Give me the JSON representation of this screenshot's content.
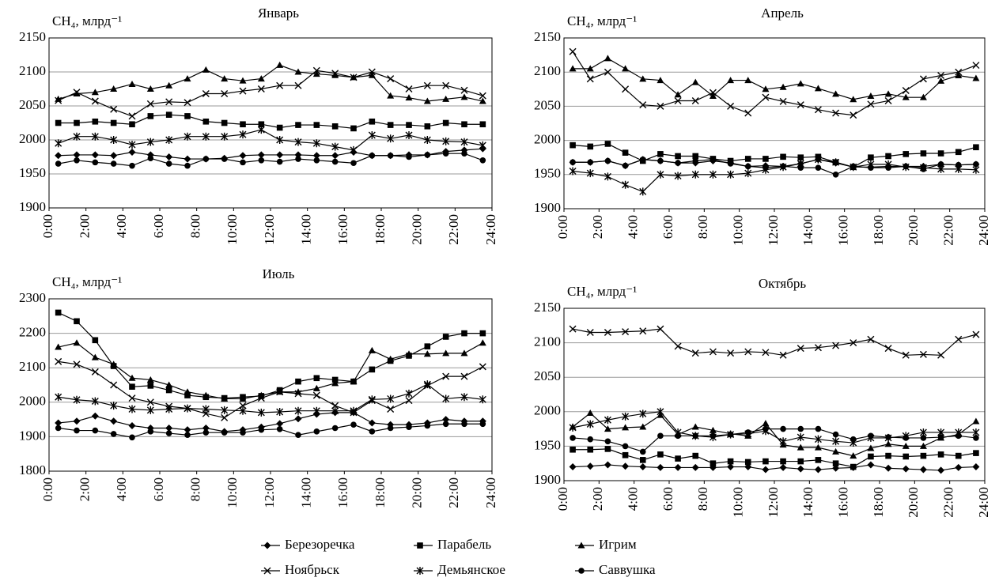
{
  "chart_data": [
    {
      "type": "line",
      "title": "Январь",
      "y_label": "CH₄, млрд⁻¹",
      "color": "#000000",
      "grid": true,
      "x": [
        0.5,
        1.5,
        2.5,
        3.5,
        4.5,
        5.5,
        6.5,
        7.5,
        8.5,
        9.5,
        10.5,
        11.5,
        12.5,
        13.5,
        14.5,
        15.5,
        16.5,
        17.5,
        18.5,
        19.5,
        20.5,
        21.5,
        22.5,
        23.5
      ],
      "xlim": [
        0,
        24
      ],
      "xticks": [
        {
          "value": 0,
          "label": "0:00"
        },
        {
          "value": 2,
          "label": "2:00"
        },
        {
          "value": 4,
          "label": "4:00"
        },
        {
          "value": 6,
          "label": "6:00"
        },
        {
          "value": 8,
          "label": "8:00"
        },
        {
          "value": 10,
          "label": "10:00"
        },
        {
          "value": 12,
          "label": "12:00"
        },
        {
          "value": 14,
          "label": "14:00"
        },
        {
          "value": 16,
          "label": "16:00"
        },
        {
          "value": 18,
          "label": "18:00"
        },
        {
          "value": 20,
          "label": "20:00"
        },
        {
          "value": 22,
          "label": "22:00"
        },
        {
          "value": 24,
          "label": "24:00"
        }
      ],
      "ylim": [
        1900,
        2150
      ],
      "yticks": [
        1900,
        1950,
        2000,
        2050,
        2100,
        2150
      ],
      "series": [
        {
          "name": "Березоречка",
          "marker": "diamond",
          "values": [
            1977,
            1978,
            1978,
            1977,
            1982,
            1978,
            1975,
            1972,
            1972,
            1973,
            1977,
            1978,
            1978,
            1978,
            1977,
            1977,
            1982,
            1977,
            1977,
            1978,
            1978,
            1983,
            1985,
            1987
          ]
        },
        {
          "name": "Парабель",
          "marker": "square",
          "values": [
            2025,
            2025,
            2027,
            2025,
            2023,
            2035,
            2037,
            2035,
            2027,
            2025,
            2023,
            2023,
            2018,
            2022,
            2022,
            2020,
            2017,
            2027,
            2022,
            2022,
            2020,
            2025,
            2023,
            2023
          ]
        },
        {
          "name": "Игрим",
          "marker": "triangle",
          "values": [
            2060,
            2068,
            2070,
            2075,
            2082,
            2075,
            2080,
            2090,
            2103,
            2090,
            2087,
            2090,
            2110,
            2100,
            2097,
            2095,
            2092,
            2095,
            2065,
            2062,
            2057,
            2060,
            2063,
            2057
          ]
        },
        {
          "name": "Ноябрьск",
          "marker": "x",
          "values": [
            2058,
            2070,
            2057,
            2045,
            2035,
            2053,
            2056,
            2055,
            2068,
            2068,
            2072,
            2075,
            2080,
            2080,
            2102,
            2098,
            2092,
            2100,
            2090,
            2075,
            2080,
            2080,
            2073,
            2065
          ]
        },
        {
          "name": "Демьянское",
          "marker": "asterisk",
          "values": [
            1995,
            2005,
            2005,
            2000,
            1993,
            1997,
            2000,
            2005,
            2005,
            2005,
            2008,
            2015,
            2000,
            1997,
            1995,
            1990,
            1985,
            2007,
            2002,
            2007,
            2000,
            1998,
            1997,
            1992
          ]
        },
        {
          "name": "Саввушка",
          "marker": "circle",
          "values": [
            1965,
            1970,
            1967,
            1965,
            1962,
            1973,
            1965,
            1962,
            1972,
            1972,
            1967,
            1970,
            1968,
            1972,
            1970,
            1968,
            1966,
            1977,
            1977,
            1975,
            1978,
            1980,
            1980,
            1970
          ]
        }
      ]
    },
    {
      "type": "line",
      "title": "Апрель",
      "y_label": "CH₄, млрд⁻¹",
      "color": "#000000",
      "grid": true,
      "x": [
        0.5,
        1.5,
        2.5,
        3.5,
        4.5,
        5.5,
        6.5,
        7.5,
        8.5,
        9.5,
        10.5,
        11.5,
        12.5,
        13.5,
        14.5,
        15.5,
        16.5,
        17.5,
        18.5,
        19.5,
        20.5,
        21.5,
        22.5,
        23.5
      ],
      "xlim": [
        0,
        24
      ],
      "xticks": [
        {
          "value": 0,
          "label": "0:00"
        },
        {
          "value": 2,
          "label": "2:00"
        },
        {
          "value": 4,
          "label": "4:00"
        },
        {
          "value": 6,
          "label": "6:00"
        },
        {
          "value": 8,
          "label": "8:00"
        },
        {
          "value": 10,
          "label": "10:00"
        },
        {
          "value": 12,
          "label": "12:00"
        },
        {
          "value": 14,
          "label": "14:00"
        },
        {
          "value": 16,
          "label": "16:00"
        },
        {
          "value": 18,
          "label": "18:00"
        },
        {
          "value": 20,
          "label": "20:00"
        },
        {
          "value": 22,
          "label": "22:00"
        },
        {
          "value": 24,
          "label": "24:00"
        }
      ],
      "ylim": [
        1900,
        2150
      ],
      "yticks": [
        1900,
        1950,
        2000,
        2050,
        2100,
        2150
      ],
      "series": [
        {
          "values": [
            1968,
            1968,
            1970,
            1963,
            1972,
            1970,
            1967,
            1967,
            1970,
            1967,
            1962,
            1963,
            1962,
            1966,
            1972,
            1967,
            1961,
            1961,
            1962,
            1962,
            1962,
            1965,
            1964,
            1965
          ]
        },
        {
          "values": [
            1993,
            1991,
            1995,
            1982,
            1970,
            1980,
            1977,
            1977,
            1973,
            1970,
            1973,
            1973,
            1976,
            1975,
            1976,
            1968,
            1961,
            1975,
            1977,
            1980,
            1981,
            1981,
            1983,
            1990
          ]
        },
        {
          "values": [
            2105,
            2105,
            2120,
            2105,
            2090,
            2088,
            2067,
            2085,
            2065,
            2088,
            2088,
            2075,
            2078,
            2083,
            2076,
            2068,
            2060,
            2065,
            2068,
            2063,
            2063,
            2087,
            2095,
            2091
          ]
        },
        {
          "values": [
            2130,
            2090,
            2100,
            2075,
            2052,
            2050,
            2058,
            2058,
            2070,
            2050,
            2040,
            2063,
            2057,
            2052,
            2045,
            2040,
            2037,
            2053,
            2058,
            2073,
            2090,
            2095,
            2100,
            2110
          ]
        },
        {
          "values": [
            1955,
            1952,
            1947,
            1935,
            1925,
            1950,
            1948,
            1950,
            1950,
            1950,
            1952,
            1957,
            1961,
            1966,
            1972,
            1968,
            1961,
            1965,
            1965,
            1961,
            1960,
            1958,
            1958,
            1957
          ]
        },
        {
          "values": [
            1968,
            1968,
            1970,
            1963,
            1972,
            1970,
            1967,
            1970,
            1972,
            1966,
            1962,
            1960,
            1962,
            1960,
            1960,
            1950,
            1962,
            1960,
            1960,
            1962,
            1958,
            1965,
            1964,
            1965
          ]
        }
      ]
    },
    {
      "type": "line",
      "title": "Июль",
      "y_label": "CH₄, млрд⁻¹",
      "color": "#000000",
      "grid": true,
      "x": [
        0.5,
        1.5,
        2.5,
        3.5,
        4.5,
        5.5,
        6.5,
        7.5,
        8.5,
        9.5,
        10.5,
        11.5,
        12.5,
        13.5,
        14.5,
        15.5,
        16.5,
        17.5,
        18.5,
        19.5,
        20.5,
        21.5,
        22.5,
        23.5
      ],
      "xlim": [
        0,
        24
      ],
      "xticks": [
        {
          "value": 0,
          "label": "0:00"
        },
        {
          "value": 2,
          "label": "2:00"
        },
        {
          "value": 4,
          "label": "4:00"
        },
        {
          "value": 6,
          "label": "6:00"
        },
        {
          "value": 8,
          "label": "8:00"
        },
        {
          "value": 10,
          "label": "10:00"
        },
        {
          "value": 12,
          "label": "12:00"
        },
        {
          "value": 14,
          "label": "14:00"
        },
        {
          "value": 16,
          "label": "16:00"
        },
        {
          "value": 18,
          "label": "18:00"
        },
        {
          "value": 20,
          "label": "20:00"
        },
        {
          "value": 22,
          "label": "22:00"
        },
        {
          "value": 24,
          "label": "24:00"
        }
      ],
      "ylim": [
        1800,
        2300
      ],
      "yticks": [
        1800,
        1900,
        2000,
        2100,
        2200,
        2300
      ],
      "series": [
        {
          "values": [
            1940,
            1945,
            1960,
            1945,
            1932,
            1925,
            1925,
            1920,
            1925,
            1915,
            1920,
            1928,
            1938,
            1952,
            1965,
            1970,
            1970,
            1940,
            1935,
            1935,
            1940,
            1950,
            1945,
            1945
          ]
        },
        {
          "values": [
            2260,
            2235,
            2180,
            2105,
            2045,
            2048,
            2035,
            2020,
            2015,
            2012,
            2015,
            2018,
            2035,
            2060,
            2070,
            2065,
            2060,
            2095,
            2120,
            2135,
            2162,
            2190,
            2200,
            2200
          ]
        },
        {
          "values": [
            2160,
            2172,
            2130,
            2110,
            2070,
            2065,
            2050,
            2030,
            2020,
            2010,
            2010,
            2020,
            2030,
            2030,
            2040,
            2055,
            2060,
            2150,
            2125,
            2140,
            2140,
            2142,
            2142,
            2172
          ]
        },
        {
          "values": [
            2118,
            2110,
            2088,
            2050,
            2012,
            2000,
            1988,
            1982,
            1967,
            1955,
            1990,
            2012,
            2030,
            2025,
            2020,
            1990,
            1970,
            2005,
            1980,
            2005,
            2048,
            2075,
            2075,
            2103
          ]
        },
        {
          "values": [
            2015,
            2007,
            2003,
            1990,
            1980,
            1977,
            1980,
            1982,
            1980,
            1977,
            1975,
            1970,
            1972,
            1975,
            1975,
            1975,
            1975,
            2008,
            2010,
            2025,
            2052,
            2010,
            2015,
            2008
          ]
        },
        {
          "values": [
            1925,
            1918,
            1918,
            1908,
            1898,
            1915,
            1910,
            1905,
            1912,
            1912,
            1912,
            1920,
            1922,
            1905,
            1915,
            1925,
            1935,
            1915,
            1925,
            1928,
            1932,
            1937,
            1937,
            1937
          ]
        }
      ]
    },
    {
      "type": "line",
      "title": "Октябрь",
      "y_label": "CH₄, млрд⁻¹",
      "color": "#000000",
      "grid": true,
      "x": [
        0.5,
        1.5,
        2.5,
        3.5,
        4.5,
        5.5,
        6.5,
        7.5,
        8.5,
        9.5,
        10.5,
        11.5,
        12.5,
        13.5,
        14.5,
        15.5,
        16.5,
        17.5,
        18.5,
        19.5,
        20.5,
        21.5,
        22.5,
        23.5
      ],
      "xlim": [
        0,
        24
      ],
      "xticks": [
        {
          "value": 0,
          "label": "0:00"
        },
        {
          "value": 2,
          "label": "2:00"
        },
        {
          "value": 4,
          "label": "4:00"
        },
        {
          "value": 6,
          "label": "6:00"
        },
        {
          "value": 8,
          "label": "8:00"
        },
        {
          "value": 10,
          "label": "10:00"
        },
        {
          "value": 12,
          "label": "12:00"
        },
        {
          "value": 14,
          "label": "14:00"
        },
        {
          "value": 16,
          "label": "16:00"
        },
        {
          "value": 18,
          "label": "18:00"
        },
        {
          "value": 20,
          "label": "20:00"
        },
        {
          "value": 22,
          "label": "22:00"
        },
        {
          "value": 24,
          "label": "24:00"
        }
      ],
      "ylim": [
        1900,
        2150
      ],
      "yticks": [
        1900,
        1950,
        2000,
        2050,
        2100,
        2150
      ],
      "series": [
        {
          "values": [
            1920,
            1921,
            1923,
            1921,
            1920,
            1919,
            1919,
            1919,
            1919,
            1920,
            1920,
            1916,
            1919,
            1917,
            1916,
            1918,
            1919,
            1923,
            1918,
            1917,
            1916,
            1915,
            1919,
            1920
          ]
        },
        {
          "values": [
            1945,
            1945,
            1946,
            1937,
            1930,
            1938,
            1932,
            1936,
            1925,
            1928,
            1927,
            1928,
            1928,
            1928,
            1930,
            1925,
            1920,
            1935,
            1936,
            1935,
            1936,
            1938,
            1936,
            1940
          ]
        },
        {
          "values": [
            1978,
            1998,
            1975,
            1977,
            1978,
            1995,
            1967,
            1978,
            1973,
            1968,
            1965,
            1983,
            1952,
            1948,
            1948,
            1942,
            1936,
            1947,
            1953,
            1950,
            1950,
            1962,
            1967,
            1986
          ]
        },
        {
          "values": [
            2120,
            2115,
            2115,
            2116,
            2117,
            2120,
            2095,
            2085,
            2087,
            2085,
            2087,
            2086,
            2082,
            2092,
            2093,
            2096,
            2100,
            2105,
            2092,
            2082,
            2083,
            2082,
            2105,
            2112
          ]
        },
        {
          "values": [
            1977,
            1982,
            1988,
            1993,
            1997,
            2000,
            1970,
            1965,
            1963,
            1967,
            1968,
            1972,
            1957,
            1963,
            1960,
            1957,
            1955,
            1962,
            1962,
            1965,
            1970,
            1970,
            1970,
            1970
          ]
        },
        {
          "values": [
            1962,
            1960,
            1957,
            1950,
            1942,
            1965,
            1965,
            1965,
            1965,
            1967,
            1970,
            1975,
            1975,
            1975,
            1975,
            1967,
            1960,
            1965,
            1963,
            1962,
            1962,
            1963,
            1965,
            1962
          ]
        }
      ]
    }
  ]
}
